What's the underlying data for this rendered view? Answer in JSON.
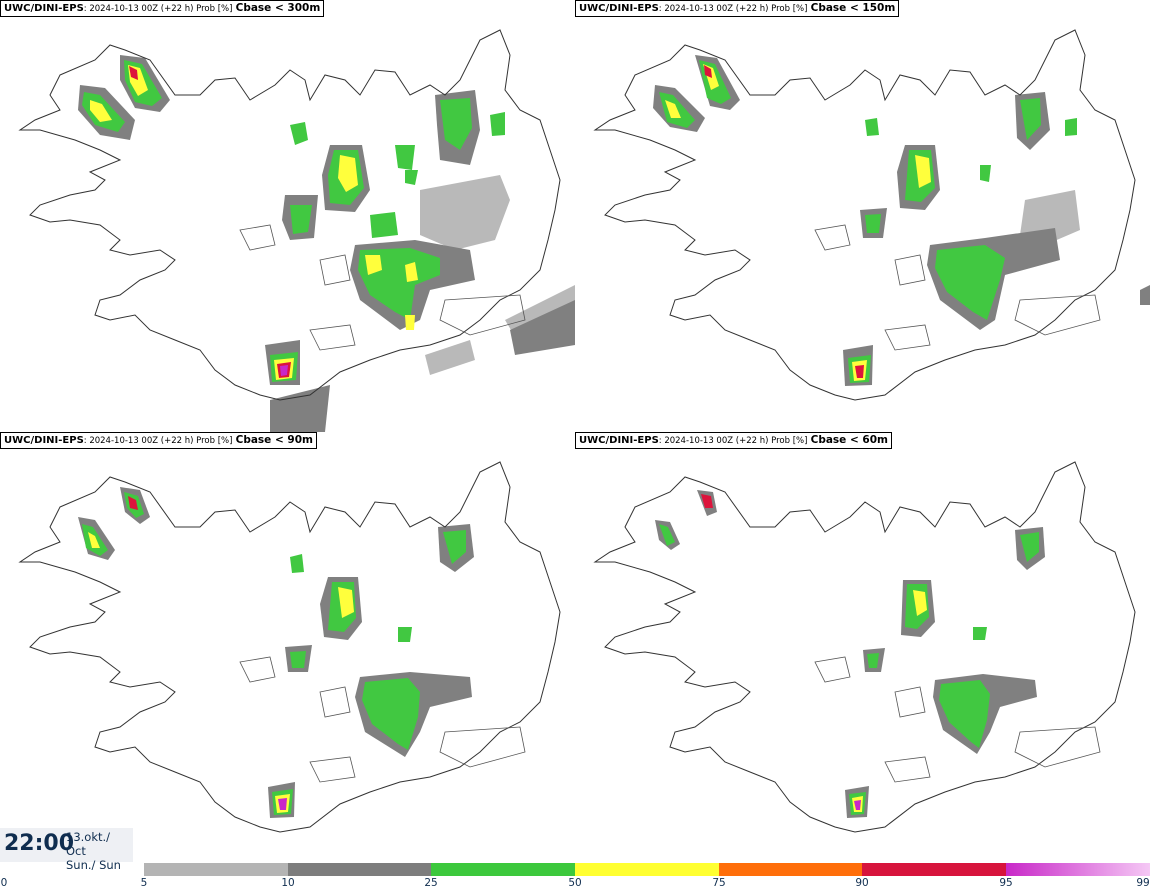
{
  "panels": [
    {
      "source": "UWC/DINI-EPS",
      "meta": ": 2024-10-13 00Z (+22 h) Prob [%]",
      "variable": "Cbase < 300m"
    },
    {
      "source": "UWC/DINI-EPS",
      "meta": ": 2024-10-13 00Z (+22 h) Prob [%]",
      "variable": "Cbase < 150m"
    },
    {
      "source": "UWC/DINI-EPS",
      "meta": ": 2024-10-13 00Z (+22 h) Prob [%]",
      "variable": "Cbase < 90m"
    },
    {
      "source": "UWC/DINI-EPS",
      "meta": ": 2024-10-13 00Z (+22 h) Prob [%]",
      "variable": "Cbase < 60m"
    }
  ],
  "time": {
    "clock": "22:00",
    "date_line1": "13.okt./ Oct",
    "date_line2": "Sun./ Sun"
  },
  "legend": {
    "ticks": [
      "0",
      "5",
      "10",
      "25",
      "50",
      "75",
      "90",
      "95",
      "99"
    ],
    "colors": [
      "#ffffff",
      "#b4b4b4",
      "#7d7d7d",
      "#3cc83c",
      "#ffff32",
      "#ff6e0a",
      "#d7143c",
      "#c828c8",
      "#f5c8f5"
    ]
  },
  "colors": {
    "light_gray": "#b9b9b9",
    "dark_gray": "#808080",
    "green": "#41c841",
    "yellow": "#ffff3c",
    "red": "#dc143c",
    "magenta": "#c828c8"
  }
}
